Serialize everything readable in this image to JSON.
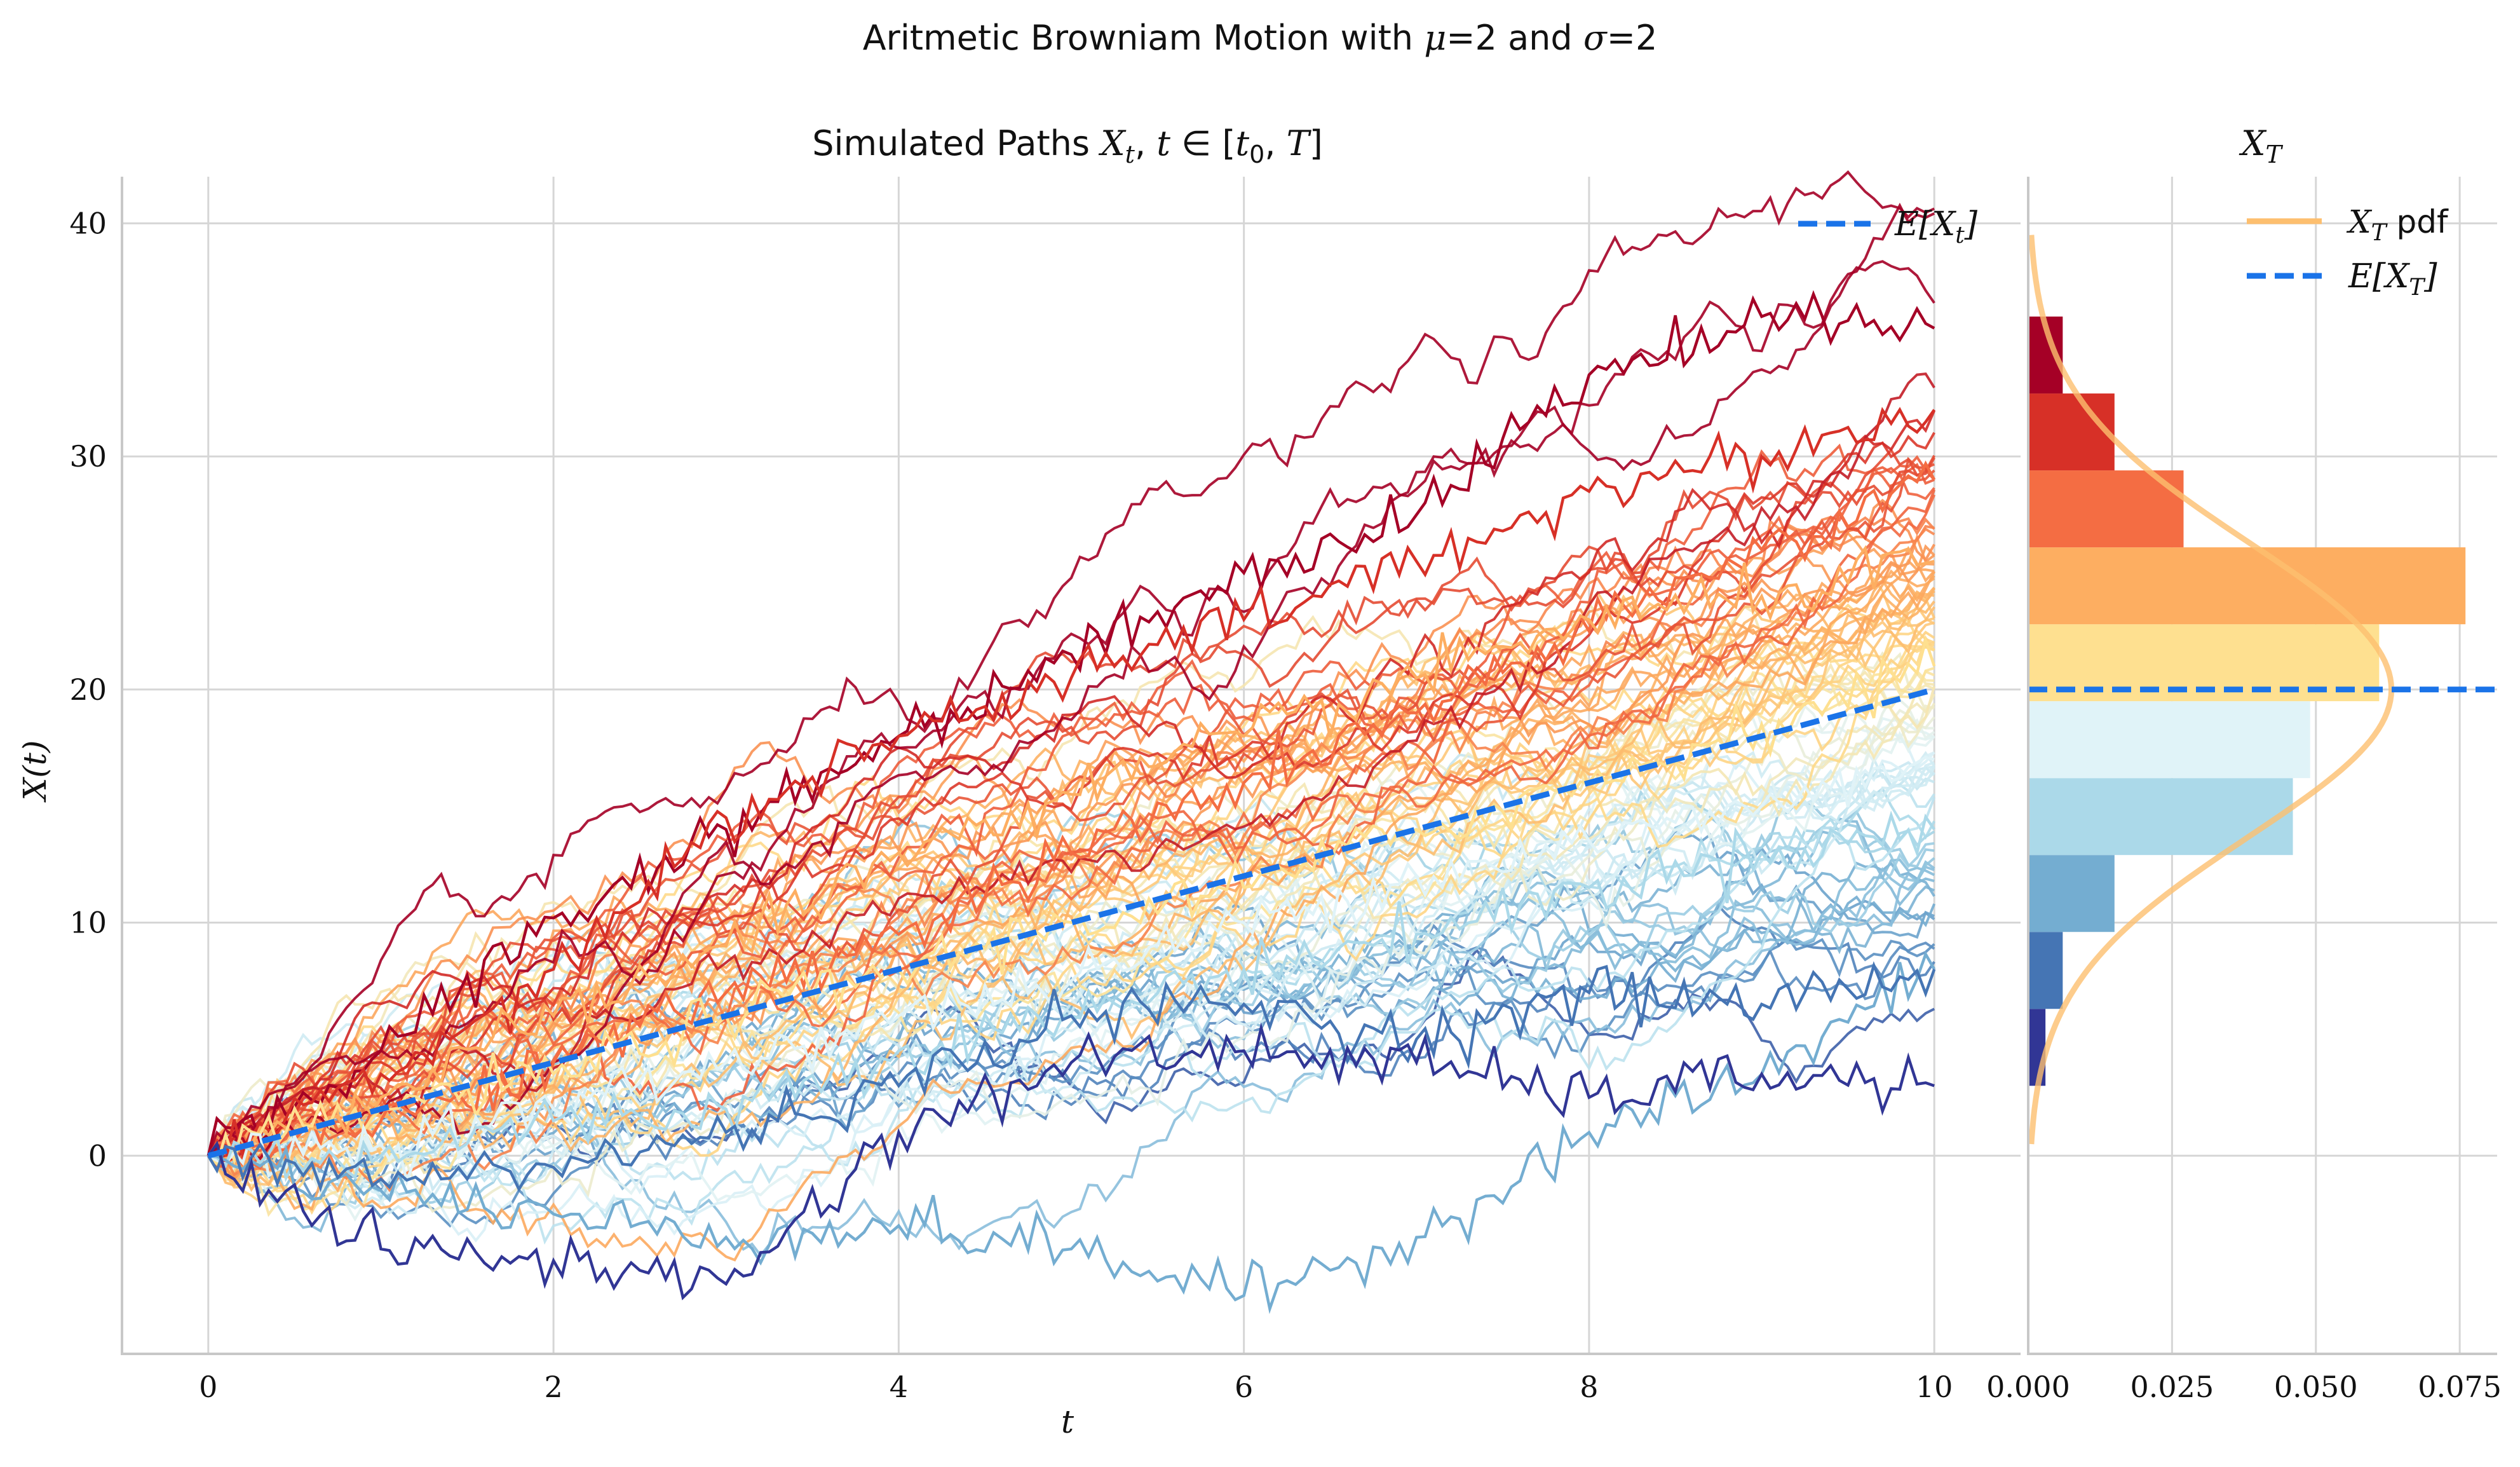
{
  "figure": {
    "suptitle": "Aritmetic Browniam Motion with μ=2 and σ=2"
  },
  "chart_data": [
    {
      "type": "line",
      "title": "Simulated Paths X_t, t ∈ [t0, T]",
      "xlabel": "t",
      "ylabel": "X(t)",
      "xlim": [
        -0.5,
        10.5
      ],
      "ylim": [
        -8.5,
        42
      ],
      "xticks": [
        0,
        2,
        4,
        6,
        8,
        10
      ],
      "yticks": [
        0,
        10,
        20,
        30,
        40
      ],
      "grid": true,
      "legend": {
        "position": "top-right",
        "entries": [
          "E[X_t]"
        ]
      },
      "colormap": "RdYlBu_r",
      "series_count": 100,
      "mean_line": {
        "name": "E[X_t]",
        "x": [
          0,
          10
        ],
        "y": [
          0,
          20
        ],
        "color": "#1a73e8",
        "style": "dashed"
      },
      "highlighted_paths": [
        {
          "t": [
            0,
            1,
            2,
            3,
            4,
            5,
            6,
            7,
            8,
            9,
            10
          ],
          "x": [
            0,
            4.5,
            10.2,
            14,
            18,
            21.5,
            25,
            27.5,
            33.5,
            36,
            35.5
          ],
          "color": "#a50026"
        },
        {
          "t": [
            0,
            1,
            2,
            3,
            4,
            5,
            6,
            7,
            8,
            9,
            10
          ],
          "x": [
            0,
            3.5,
            8,
            14.5,
            18,
            20.5,
            23,
            25.5,
            28.5,
            30,
            32
          ],
          "color": "#d73027"
        },
        {
          "t": [
            0,
            1,
            2,
            3,
            4,
            5,
            6,
            7,
            8,
            9,
            10
          ],
          "x": [
            0,
            1.5,
            4,
            7,
            9.5,
            13,
            16,
            19,
            22.5,
            26,
            29
          ],
          "color": "#f46d43"
        },
        {
          "t": [
            0,
            1,
            2,
            3,
            4,
            5,
            6,
            7,
            8,
            9,
            10
          ],
          "x": [
            0,
            2.5,
            6,
            9,
            13,
            15.5,
            18,
            20.5,
            23,
            24,
            25.5
          ],
          "color": "#fdae61"
        },
        {
          "t": [
            0,
            1,
            2,
            3,
            4,
            5,
            6,
            7,
            8,
            9,
            10
          ],
          "x": [
            0,
            2,
            3.5,
            6,
            8,
            10,
            11.5,
            14,
            16,
            18.5,
            21
          ],
          "color": "#fee090"
        },
        {
          "t": [
            0,
            1,
            2,
            3,
            4,
            5,
            6,
            7,
            8,
            9,
            10
          ],
          "x": [
            0,
            0.5,
            2,
            4,
            6,
            7.5,
            10,
            12,
            13.5,
            15,
            17
          ],
          "color": "#e0f3f8"
        },
        {
          "t": [
            0,
            1,
            2,
            3,
            4,
            5,
            6,
            7,
            8,
            9,
            10
          ],
          "x": [
            0,
            0,
            1.5,
            2,
            4.5,
            6,
            8,
            9.5,
            11.5,
            13,
            14
          ],
          "color": "#abd9e9"
        },
        {
          "t": [
            0,
            1,
            2,
            3,
            4,
            5,
            6,
            7,
            8,
            9,
            10
          ],
          "x": [
            0,
            -1.5,
            -2.5,
            -3.5,
            -3,
            -4,
            -6,
            -3.5,
            1,
            3.5,
            8
          ],
          "color": "#74add1"
        },
        {
          "t": [
            0,
            1,
            2,
            3,
            4,
            5,
            6,
            7,
            8,
            9,
            10
          ],
          "x": [
            0,
            -1,
            -0.5,
            1,
            3,
            6,
            6.5,
            5,
            7,
            6.5,
            8
          ],
          "color": "#4575b4"
        },
        {
          "t": [
            0,
            1,
            2,
            3,
            4,
            5,
            6,
            7,
            8,
            9,
            10
          ],
          "x": [
            0,
            -4,
            -4.5,
            -5.5,
            1,
            4,
            4.5,
            4,
            2.5,
            3.5,
            3
          ],
          "color": "#313695"
        }
      ]
    },
    {
      "type": "bar",
      "orientation": "horizontal",
      "title": "X_T",
      "xlim": [
        0,
        0.0815
      ],
      "ylim": [
        -8.5,
        42
      ],
      "xticks": [
        0.0,
        0.025,
        0.05,
        0.075
      ],
      "xtick_labels": [
        "0.000",
        "0.025",
        "0.050",
        "0.075"
      ],
      "grid": true,
      "legend": {
        "position": "top-right",
        "entries": [
          "X_T pdf",
          "E[X_T]"
        ]
      },
      "bins": [
        {
          "y0": 3.0,
          "y1": 6.3,
          "density": 0.003,
          "color": "#313695"
        },
        {
          "y0": 6.3,
          "y1": 9.6,
          "density": 0.006,
          "color": "#4575b4"
        },
        {
          "y0": 9.6,
          "y1": 12.9,
          "density": 0.015,
          "color": "#74add1"
        },
        {
          "y0": 12.9,
          "y1": 16.2,
          "density": 0.046,
          "color": "#abd9e9"
        },
        {
          "y0": 16.2,
          "y1": 19.5,
          "density": 0.049,
          "color": "#e0f3f8"
        },
        {
          "y0": 19.5,
          "y1": 22.8,
          "density": 0.061,
          "color": "#fee090"
        },
        {
          "y0": 22.8,
          "y1": 26.1,
          "density": 0.076,
          "color": "#fdae61"
        },
        {
          "y0": 26.1,
          "y1": 29.4,
          "density": 0.027,
          "color": "#f46d43"
        },
        {
          "y0": 29.4,
          "y1": 32.7,
          "density": 0.015,
          "color": "#d73027"
        },
        {
          "y0": 32.7,
          "y1": 36.0,
          "density": 0.006,
          "color": "#a50026"
        }
      ],
      "pdf": {
        "name": "X_T pdf",
        "mean": 20,
        "std": 6.32,
        "y_range": [
          0.5,
          39.5
        ],
        "color": "#fdbf6f"
      },
      "mean_line": {
        "name": "E[X_T]",
        "y": 20,
        "color": "#1a73e8",
        "style": "dashed"
      }
    }
  ]
}
